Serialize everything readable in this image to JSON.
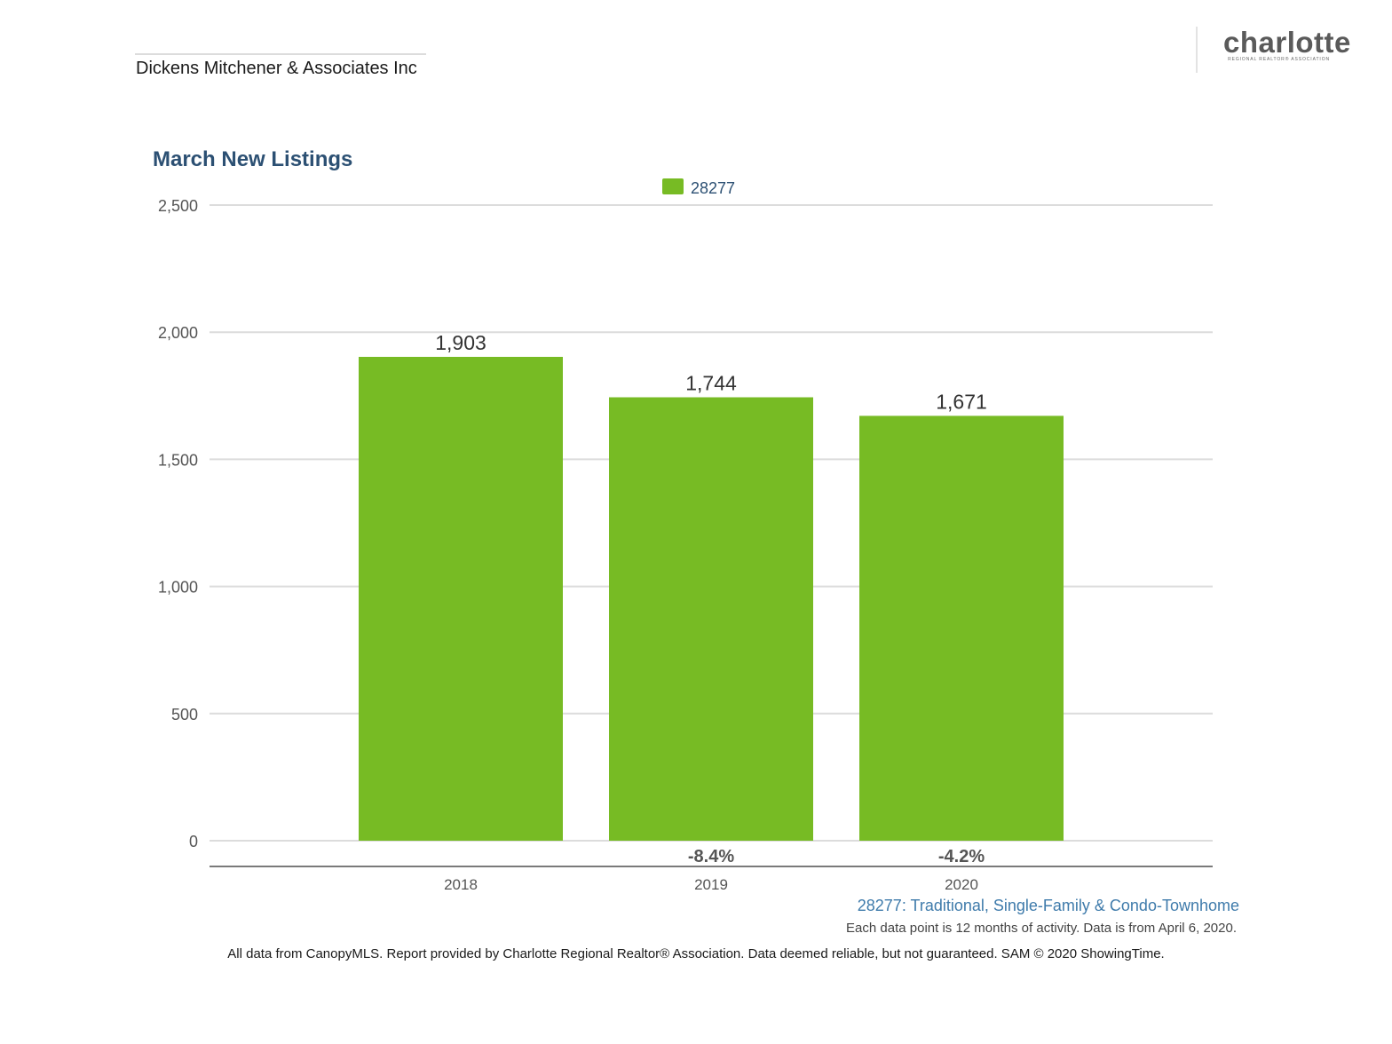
{
  "header": {
    "company": "Dickens Mitchener & Associates Inc",
    "logo_text": "charlotte",
    "logo_subtext": "REGIONAL REALTOR® ASSOCIATION"
  },
  "chart_data": {
    "type": "bar",
    "title": "March New Listings",
    "categories": [
      "2018",
      "2019",
      "2020"
    ],
    "series": [
      {
        "name": "28277",
        "values": [
          1903,
          1744,
          1671
        ],
        "color": "#77bb24"
      }
    ],
    "data_labels": [
      "1,903",
      "1,744",
      "1,671"
    ],
    "change_labels": [
      "",
      "-8.4%",
      "-4.2%"
    ],
    "yticks": [
      "0",
      "500",
      "1,000",
      "1,500",
      "2,000",
      "2,500"
    ],
    "ylim": [
      0,
      2500
    ],
    "grid": true,
    "legend_position": "top-center"
  },
  "subtitle": "28277: Traditional, Single-Family & Condo-Townhome",
  "note": "Each data point is 12 months of activity. Data is from April 6, 2020.",
  "footer": "All data from CanopyMLS. Report provided by Charlotte Regional Realtor® Association. Data deemed reliable, but not guaranteed. SAM © 2020 ShowingTime."
}
